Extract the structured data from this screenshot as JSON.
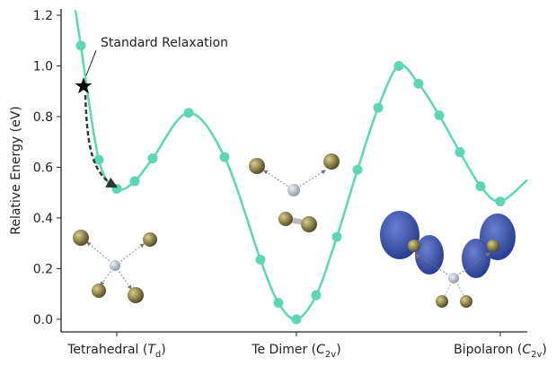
{
  "chart_data": {
    "type": "line",
    "ylabel": "Relative Energy (eV)",
    "xlim": [
      -3.1,
      22.85
    ],
    "ylim": [
      -0.05,
      1.2
    ],
    "xticks": [
      {
        "value": 0,
        "label": [
          "Tetrahedral (",
          "T",
          "d",
          ")"
        ]
      },
      {
        "value": 10,
        "label": [
          "Te Dimer (",
          "C",
          "2v",
          ")"
        ]
      },
      {
        "value": 21.35,
        "label": [
          "Bipolaron (",
          "C",
          "2v",
          ")"
        ]
      }
    ],
    "yticks": [
      {
        "value": 0,
        "label": "0.0"
      },
      0.2,
      0.4,
      0.6,
      0.8,
      {
        "value": 1,
        "label": "1.0"
      },
      1.2
    ],
    "series": [
      {
        "color": "#5cd6b6",
        "x": [
          -2,
          -1,
          0,
          1,
          2,
          4,
          6,
          8,
          9,
          10,
          11.1,
          12.25,
          13.4,
          14.55,
          15.7,
          16.8,
          17.95,
          19.1,
          20.25,
          21.35
        ],
        "values": [
          1.08,
          0.63,
          0.515,
          0.545,
          0.635,
          0.815,
          0.64,
          0.235,
          0.065,
          0.0,
          0.095,
          0.325,
          0.59,
          0.835,
          1.0,
          0.93,
          0.805,
          0.66,
          0.525,
          0.465
        ]
      }
    ],
    "annotations": [
      {
        "text": "Standard Relaxation",
        "x": -1.85,
        "y": 0.92
      }
    ]
  }
}
